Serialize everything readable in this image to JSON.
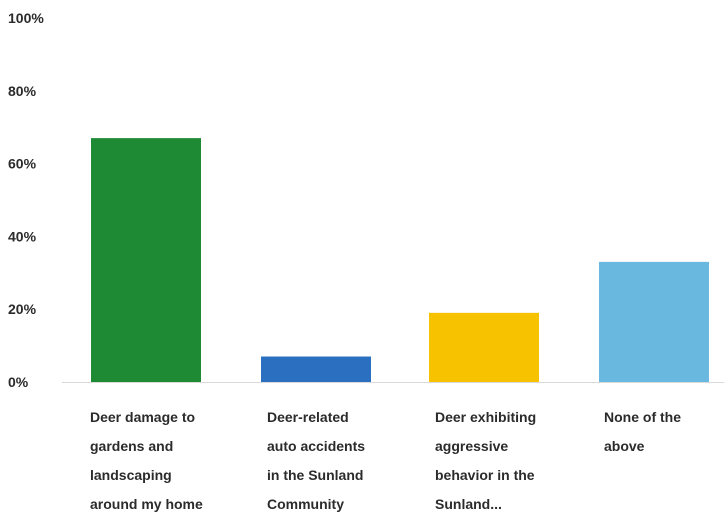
{
  "chart_data": {
    "type": "bar",
    "title": "",
    "xlabel": "",
    "ylabel": "",
    "ylim": [
      0,
      100
    ],
    "y_ticks": [
      "0%",
      "20%",
      "40%",
      "60%",
      "80%",
      "100%"
    ],
    "y_tick_values": [
      0,
      20,
      40,
      60,
      80,
      100
    ],
    "grid": false,
    "categories": [
      [
        "Deer damage to",
        "gardens and",
        "landscaping",
        "around my home"
      ],
      [
        "Deer-related",
        "auto accidents",
        "in the Sunland",
        "Community"
      ],
      [
        "Deer exhibiting",
        "aggressive",
        "behavior in the",
        "Sunland..."
      ],
      [
        "None of the",
        "above"
      ]
    ],
    "values": [
      67,
      7,
      19,
      33
    ],
    "colors": [
      "#1f8a34",
      "#2a6fc0",
      "#f7c200",
      "#69b8df"
    ],
    "axis_color": "#d9d9d9"
  }
}
